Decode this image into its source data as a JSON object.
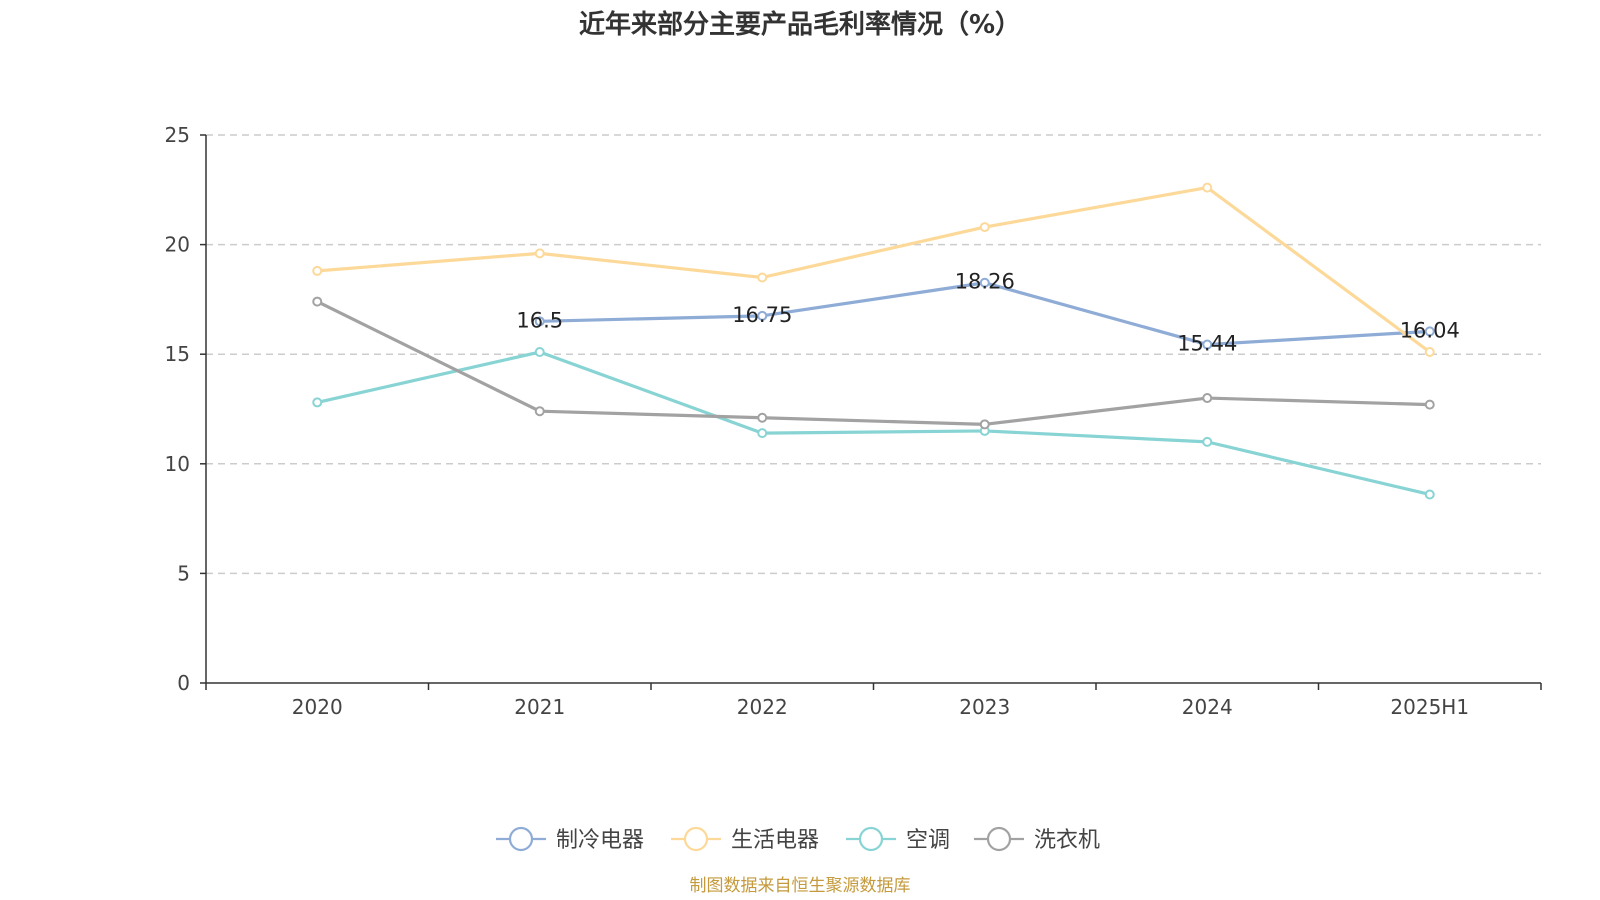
{
  "chart_data": {
    "type": "line",
    "title": "近年来部分主要产品毛利率情况（%）",
    "categories": [
      "2020",
      "2021",
      "2022",
      "2023",
      "2024",
      "2025H1"
    ],
    "ylim": [
      0,
      25
    ],
    "yticks": [
      0,
      5,
      10,
      15,
      20,
      25
    ],
    "grid": true,
    "legend_position": "bottom",
    "series": [
      {
        "name": "制冷电器",
        "color": "#8eacd6",
        "values": [
          null,
          16.5,
          16.75,
          18.26,
          15.44,
          16.04
        ],
        "labels": [
          "",
          "16.5",
          "16.75",
          "18.26",
          "15.44",
          "16.04"
        ]
      },
      {
        "name": "生活电器",
        "color": "#fcd999",
        "values": [
          18.8,
          19.6,
          18.5,
          20.8,
          22.6,
          15.1
        ],
        "labels": [
          "",
          "",
          "",
          "",
          "",
          ""
        ]
      },
      {
        "name": "空调",
        "color": "#88d4d4",
        "values": [
          12.8,
          15.1,
          11.4,
          11.5,
          11.0,
          8.6
        ],
        "labels": [
          "",
          "",
          "",
          "",
          "",
          ""
        ]
      },
      {
        "name": "洗衣机",
        "color": "#a2a2a2",
        "values": [
          17.4,
          12.4,
          12.1,
          11.8,
          13.0,
          12.7
        ],
        "labels": [
          "",
          "",
          "",
          "",
          "",
          ""
        ]
      }
    ]
  },
  "source": {
    "text": "制图数据来自恒生聚源数据库",
    "color": "#c49a3c"
  }
}
